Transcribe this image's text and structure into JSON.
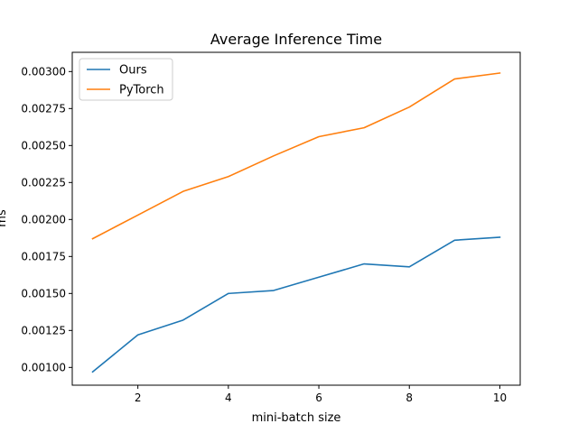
{
  "chart_data": {
    "type": "line",
    "title": "Average Inference Time",
    "xlabel": "mini-batch size",
    "ylabel": "ms",
    "x": [
      1,
      2,
      3,
      4,
      5,
      6,
      7,
      8,
      9,
      10
    ],
    "xlim": [
      0.55,
      10.45
    ],
    "ylim": [
      0.00088,
      0.00313
    ],
    "xticks": [
      2,
      4,
      6,
      8,
      10
    ],
    "yticks": [
      0.001,
      0.00125,
      0.0015,
      0.00175,
      0.002,
      0.00225,
      0.0025,
      0.00275,
      0.003
    ],
    "ytick_labels": [
      "0.00100",
      "0.00125",
      "0.00150",
      "0.00175",
      "0.00200",
      "0.00225",
      "0.00250",
      "0.00275",
      "0.00300"
    ],
    "grid": false,
    "legend_position": "top-left",
    "series": [
      {
        "name": "Ours",
        "color": "#1f77b4",
        "values": [
          0.00097,
          0.00122,
          0.00132,
          0.0015,
          0.00152,
          0.00161,
          0.0017,
          0.00168,
          0.00186,
          0.00188
        ]
      },
      {
        "name": "PyTorch",
        "color": "#ff7f0e",
        "values": [
          0.00187,
          0.00203,
          0.00219,
          0.00229,
          0.00243,
          0.00256,
          0.00262,
          0.00276,
          0.00295,
          0.00299
        ]
      }
    ]
  }
}
